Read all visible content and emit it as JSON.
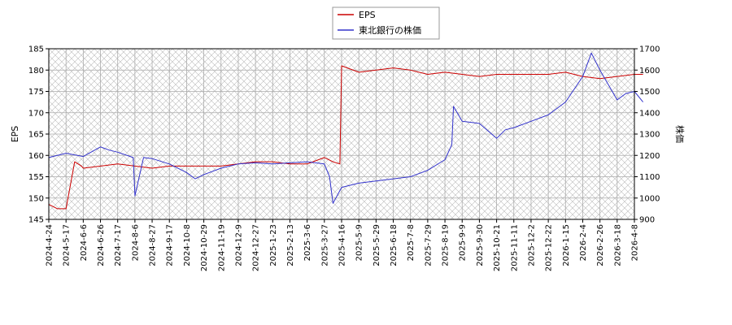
{
  "chart_data": {
    "type": "line",
    "title": "",
    "legend": {
      "placement": "top-center",
      "entries": [
        {
          "name": "EPS",
          "color": "#cc0000"
        },
        {
          "name": "東北銀行の株価",
          "color": "#3333cc"
        }
      ]
    },
    "grid": true,
    "background_pattern": "crosshatch",
    "xlabel": "",
    "ylabel_left": "EPS",
    "ylabel_right": "株価",
    "ylim_left": [
      145,
      185
    ],
    "ylim_right": [
      900,
      1700
    ],
    "y_ticks_left": [
      "145",
      "150",
      "155",
      "160",
      "165",
      "170",
      "175",
      "180",
      "185"
    ],
    "y_ticks_right": [
      "900",
      "1000",
      "1100",
      "1200",
      "1300",
      "1400",
      "1500",
      "1600",
      "1700"
    ],
    "x_ticks": [
      "2024-4-24",
      "2024-5-17",
      "2024-6-6",
      "2024-6-26",
      "2024-7-17",
      "2024-8-6",
      "2024-8-27",
      "2024-9-17",
      "2024-10-8",
      "2024-10-29",
      "2024-11-19",
      "2024-12-9",
      "2024-12-27",
      "2025-1-23",
      "2025-2-13",
      "2025-3-6",
      "2025-3-27",
      "2025-4-16",
      "2025-5-9",
      "2025-5-29",
      "2025-6-18",
      "2025-7-8",
      "2025-7-29",
      "2025-8-19",
      "2025-9-9",
      "2025-9-30",
      "2025-10-21",
      "2025-11-11",
      "2025-12-2",
      "2025-12-22",
      "2026-1-15",
      "2026-2-4",
      "2026-2-26",
      "2026-3-18",
      "2026-4-8"
    ],
    "series": [
      {
        "name": "EPS",
        "axis": "left",
        "color": "#cc0000",
        "x": [
          0,
          0.5,
          1,
          1.5,
          1.9,
          2,
          3,
          4,
          5,
          6,
          7,
          8,
          9,
          10,
          11,
          12,
          13,
          14,
          15,
          16,
          16.5,
          16.9,
          17,
          18,
          19,
          20,
          21,
          22,
          23,
          24,
          25,
          26,
          27,
          28,
          29,
          30,
          31,
          32,
          33,
          34,
          34.5
        ],
        "values": [
          148.5,
          147.5,
          147.5,
          158.5,
          157.5,
          157,
          157.5,
          158,
          157.5,
          157,
          157.5,
          157.5,
          157.5,
          157.5,
          158,
          158.5,
          158.5,
          158,
          158,
          159.5,
          158.5,
          158,
          181,
          179.5,
          180,
          180.5,
          180,
          179,
          179.5,
          179,
          178.5,
          179,
          179,
          179,
          179,
          179.5,
          178.5,
          178,
          178.5,
          179,
          179
        ]
      },
      {
        "name": "東北銀行の株価",
        "axis": "right",
        "color": "#3333cc",
        "x": [
          0,
          1,
          2,
          3,
          3.5,
          4,
          4.9,
          5,
          5.5,
          6,
          7,
          8,
          8.5,
          9,
          10,
          11,
          12,
          13,
          14,
          15,
          16,
          16.3,
          16.5,
          17,
          18,
          19,
          20,
          21,
          22,
          23,
          23.4,
          23.5,
          24,
          25,
          26,
          26.5,
          27,
          28,
          29,
          30,
          31,
          31.5,
          32,
          32.5,
          33,
          33.5,
          34,
          34.5
        ],
        "values": [
          1190,
          1210,
          1195,
          1240,
          1225,
          1215,
          1190,
          1010,
          1190,
          1185,
          1160,
          1120,
          1090,
          1110,
          1140,
          1160,
          1165,
          1160,
          1165,
          1170,
          1160,
          1100,
          975,
          1050,
          1070,
          1080,
          1090,
          1100,
          1130,
          1180,
          1250,
          1430,
          1360,
          1350,
          1280,
          1320,
          1330,
          1360,
          1390,
          1450,
          1570,
          1680,
          1600,
          1530,
          1460,
          1490,
          1500,
          1450
        ]
      }
    ]
  }
}
